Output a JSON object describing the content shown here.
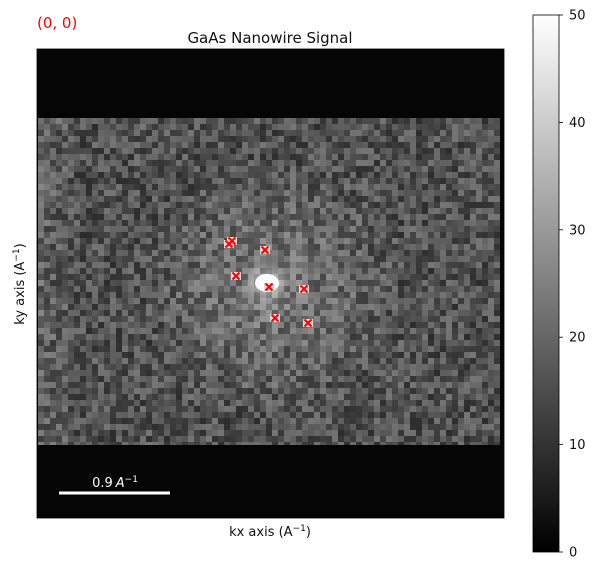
{
  "coord_readout": "(0, 0)",
  "colors": {
    "coord_readout": "#ff0000",
    "marker": "#ff0000",
    "scalebar": "#ffffff",
    "background_dark": "#050505"
  },
  "scalebar": {
    "value": "0.9",
    "unit": "A",
    "exponent": "−1"
  },
  "chart_data": {
    "type": "heatmap",
    "title": "GaAs Nanowire Signal",
    "xlabel": "kx axis (A",
    "ylabel": "ky axis (A",
    "axis_exponent": "−1",
    "axis_unit_close": ")",
    "colorbar": {
      "cmap": "gray",
      "range": [
        0,
        50
      ],
      "ticks": [
        0,
        10,
        20,
        30,
        40,
        50
      ]
    },
    "axes_ticks_shown": false,
    "grid": false,
    "markers": {
      "symbol": "x",
      "color": "#ff0000",
      "count": 8
    }
  }
}
